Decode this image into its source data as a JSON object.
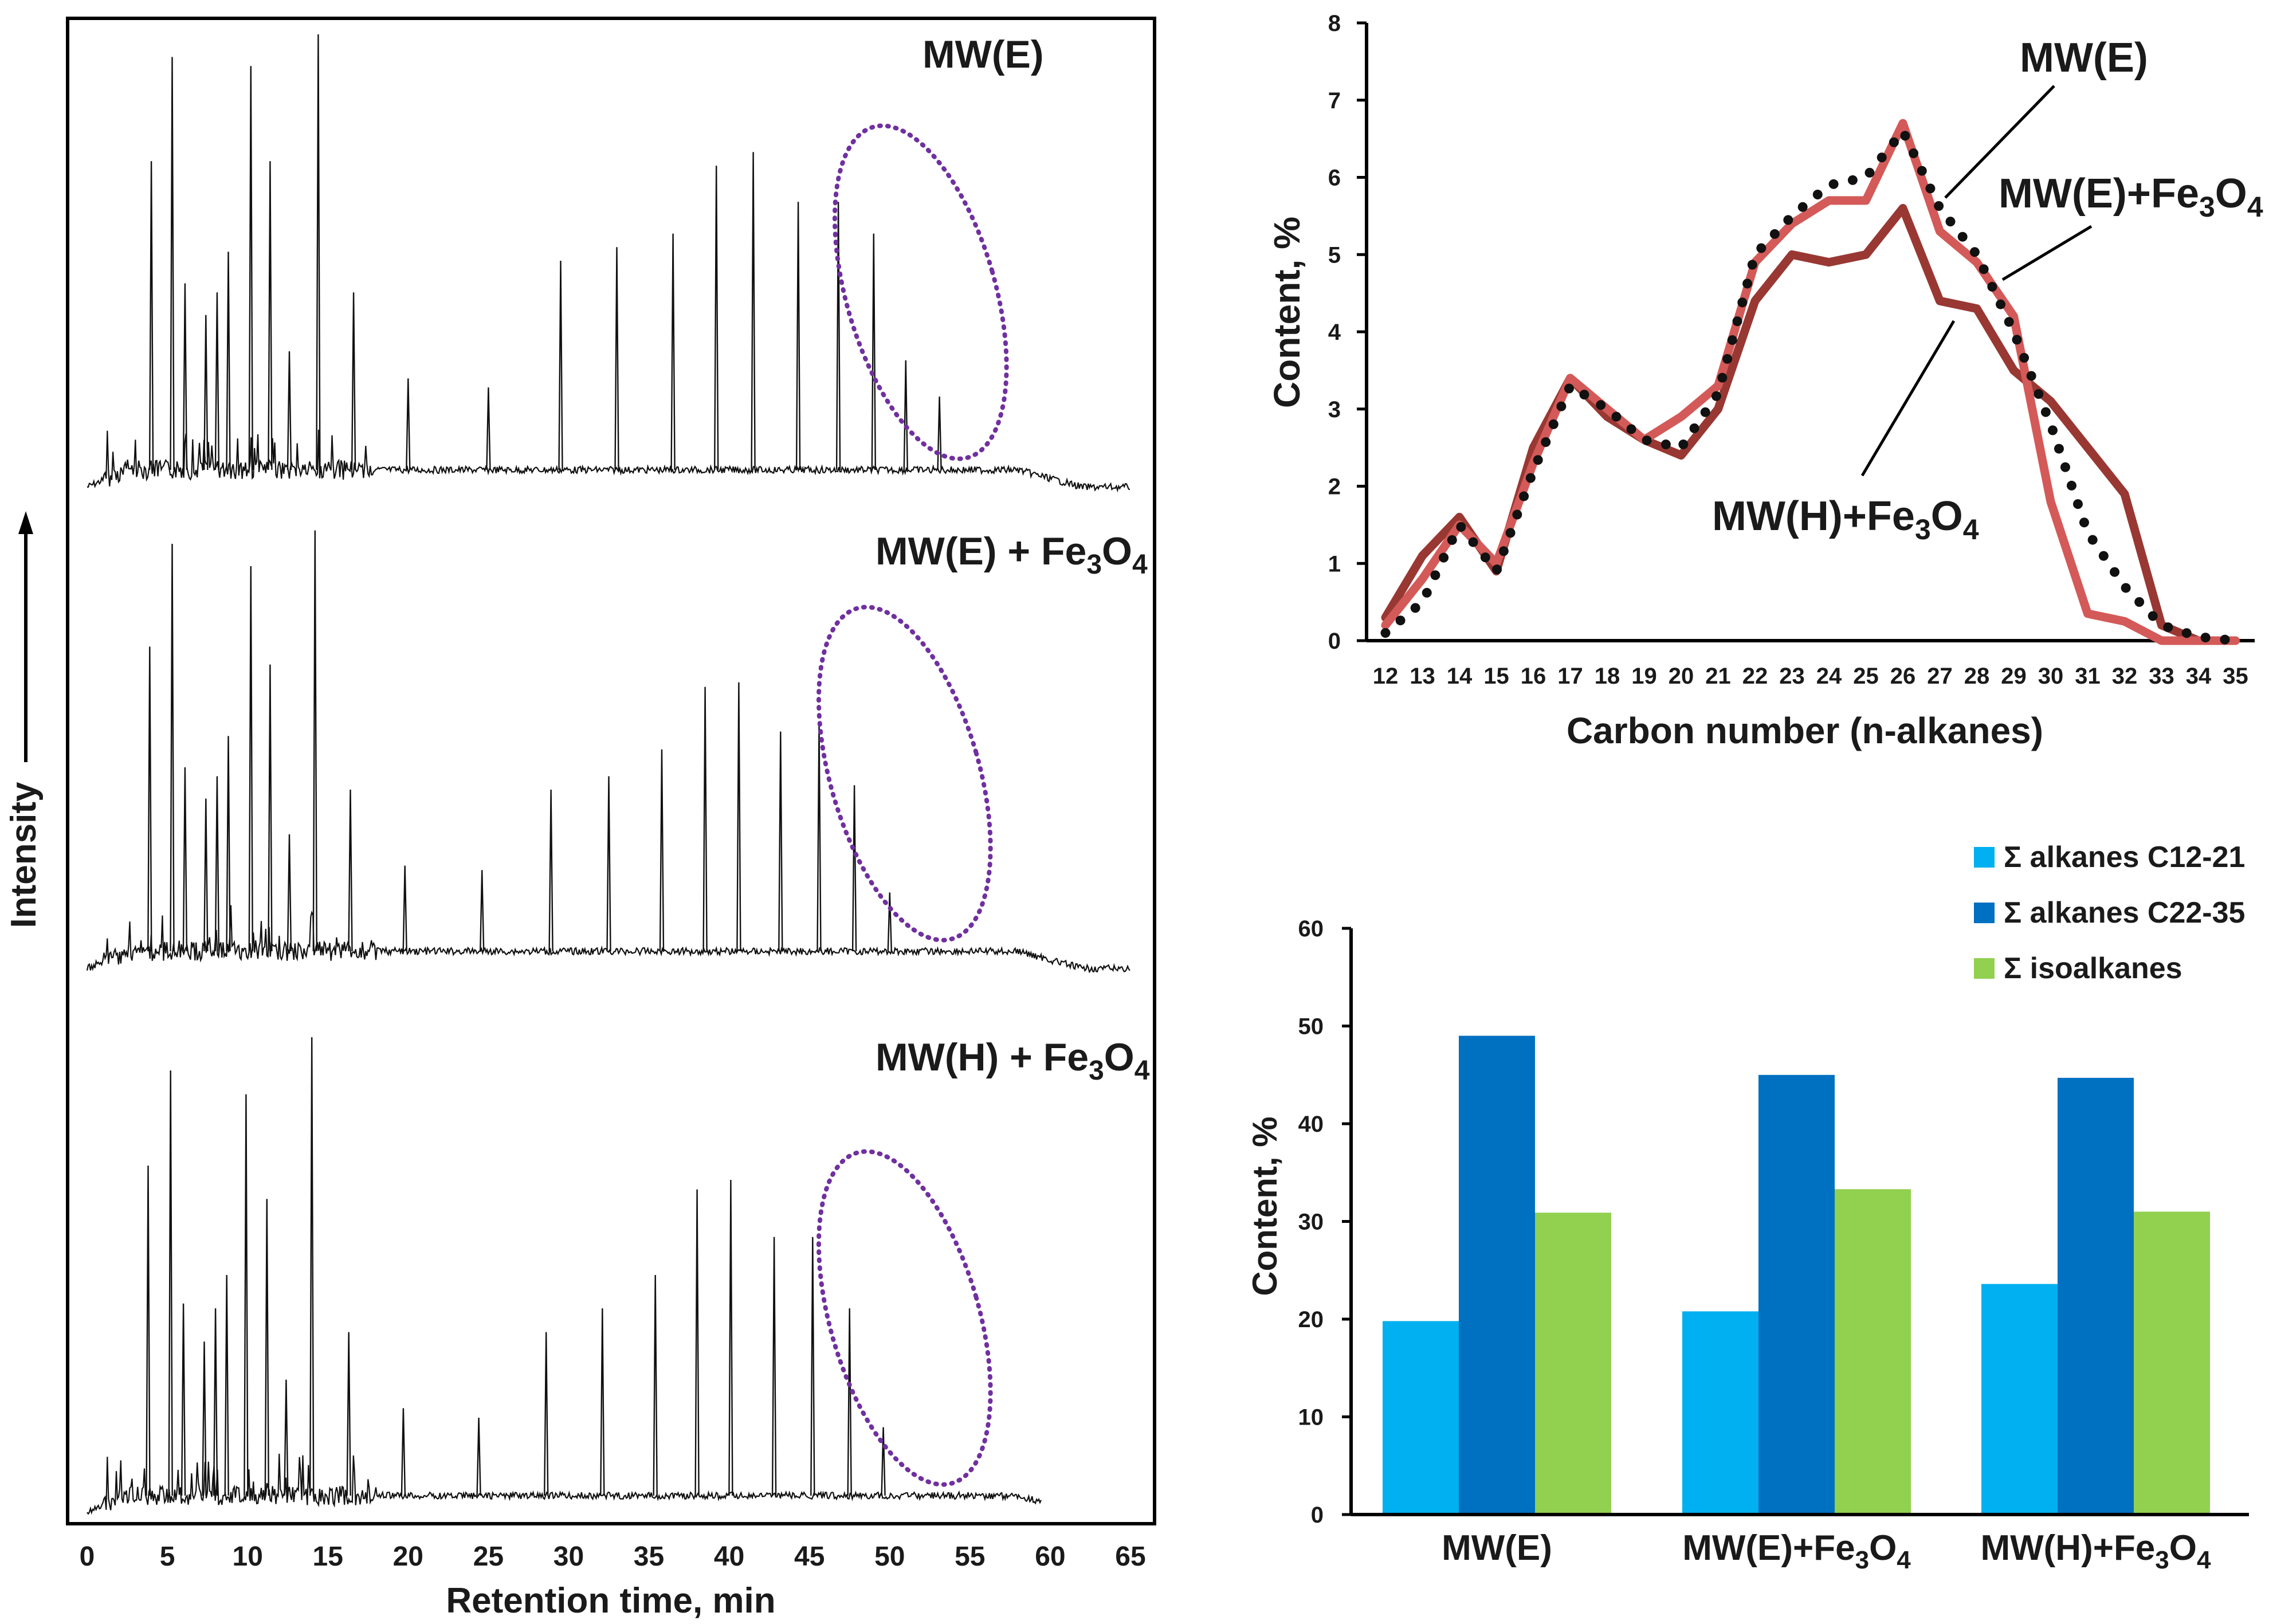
{
  "chart_data": [
    {
      "type": "line",
      "id": "chromatograms",
      "xlabel": "Retention time, min",
      "ylabel": "Intensity",
      "xlim": [
        0,
        65
      ],
      "xticks": [
        0,
        5,
        10,
        15,
        20,
        25,
        30,
        35,
        40,
        45,
        50,
        55,
        60,
        65
      ],
      "series": [
        {
          "name": "MW(E)",
          "label_main": "MW(E)",
          "label_sub": "",
          "label_tail": "",
          "trace_end": 65,
          "peaks": [
            [
              4.0,
              0.72
            ],
            [
              5.3,
              0.95
            ],
            [
              6.1,
              0.45
            ],
            [
              7.4,
              0.38
            ],
            [
              8.1,
              0.43
            ],
            [
              8.8,
              0.52
            ],
            [
              10.2,
              0.93
            ],
            [
              11.4,
              0.72
            ],
            [
              12.6,
              0.3
            ],
            [
              14.4,
              1.0
            ],
            [
              16.6,
              0.43
            ],
            [
              20.0,
              0.24
            ],
            [
              25.0,
              0.22
            ],
            [
              29.5,
              0.5
            ],
            [
              33.0,
              0.53
            ],
            [
              36.5,
              0.56
            ],
            [
              39.2,
              0.71
            ],
            [
              41.5,
              0.74
            ],
            [
              44.3,
              0.63
            ],
            [
              46.8,
              0.63
            ],
            [
              49.0,
              0.56
            ],
            [
              51.0,
              0.28
            ],
            [
              53.1,
              0.2
            ]
          ],
          "ellipse_center_min": 50.5
        },
        {
          "name": "MW(E) + Fe3O4",
          "label_main": "MW(E) + Fe",
          "label_sub": "3",
          "label_tail": "O",
          "label_sub2": "4",
          "trace_end": 65,
          "peaks": [
            [
              3.9,
              0.72
            ],
            [
              5.3,
              0.95
            ],
            [
              6.1,
              0.45
            ],
            [
              7.4,
              0.38
            ],
            [
              8.1,
              0.43
            ],
            [
              8.8,
              0.52
            ],
            [
              10.2,
              0.9
            ],
            [
              11.4,
              0.68
            ],
            [
              12.6,
              0.3
            ],
            [
              14.2,
              0.98
            ],
            [
              16.4,
              0.4
            ],
            [
              19.8,
              0.23
            ],
            [
              24.6,
              0.22
            ],
            [
              28.9,
              0.4
            ],
            [
              32.5,
              0.43
            ],
            [
              35.8,
              0.49
            ],
            [
              38.5,
              0.63
            ],
            [
              40.6,
              0.64
            ],
            [
              43.2,
              0.53
            ],
            [
              45.6,
              0.55
            ],
            [
              47.8,
              0.41
            ],
            [
              50.0,
              0.17
            ]
          ],
          "ellipse_center_min": 49.5
        },
        {
          "name": "MW(H) + Fe3O4",
          "label_main": "MW(H) + Fe",
          "label_sub": "3",
          "label_tail": "O",
          "label_sub2": "4",
          "trace_end": 59.5,
          "peaks": [
            [
              3.8,
              0.73
            ],
            [
              5.2,
              0.93
            ],
            [
              6.0,
              0.44
            ],
            [
              7.3,
              0.36
            ],
            [
              8.0,
              0.43
            ],
            [
              8.7,
              0.5
            ],
            [
              9.9,
              0.88
            ],
            [
              11.2,
              0.66
            ],
            [
              12.4,
              0.28
            ],
            [
              14.0,
              1.0
            ],
            [
              16.3,
              0.38
            ],
            [
              19.7,
              0.22
            ],
            [
              24.4,
              0.2
            ],
            [
              28.6,
              0.38
            ],
            [
              32.1,
              0.43
            ],
            [
              35.4,
              0.5
            ],
            [
              38.0,
              0.68
            ],
            [
              40.1,
              0.7
            ],
            [
              42.8,
              0.58
            ],
            [
              45.2,
              0.58
            ],
            [
              47.5,
              0.43
            ],
            [
              49.6,
              0.18
            ]
          ],
          "ellipse_center_min": 49.5
        }
      ]
    },
    {
      "type": "line",
      "id": "n-alkanes",
      "xlabel": "Carbon number (n-alkanes)",
      "ylabel": "Content, %",
      "ylim": [
        0,
        8
      ],
      "yticks": [
        0,
        1,
        2,
        3,
        4,
        5,
        6,
        7,
        8
      ],
      "categories": [
        12,
        13,
        14,
        15,
        16,
        17,
        18,
        19,
        20,
        21,
        22,
        23,
        24,
        25,
        26,
        27,
        28,
        29,
        30,
        31,
        32,
        33,
        34,
        35
      ],
      "series": [
        {
          "name": "MW(E)",
          "style": "dotted",
          "color": "#111111",
          "values": [
            0.1,
            0.5,
            1.5,
            0.9,
            2.2,
            3.3,
            3.0,
            2.6,
            2.5,
            3.2,
            5.0,
            5.5,
            5.9,
            6.0,
            6.6,
            5.6,
            5.0,
            4.0,
            2.8,
            1.4,
            0.7,
            0.2,
            0.05,
            0.0
          ]
        },
        {
          "name": "MW(E)+Fe3O4",
          "style": "solid",
          "color": "#d35a58",
          "values": [
            0.2,
            0.8,
            1.5,
            1.0,
            2.3,
            3.4,
            3.0,
            2.6,
            2.9,
            3.3,
            4.9,
            5.4,
            5.7,
            5.7,
            6.7,
            5.3,
            4.9,
            4.2,
            1.8,
            0.35,
            0.25,
            0.0,
            0.0,
            0.0
          ]
        },
        {
          "name": "MW(H)+Fe3O4",
          "style": "solid",
          "color": "#993833",
          "values": [
            0.3,
            1.1,
            1.6,
            0.9,
            2.5,
            3.4,
            2.9,
            2.6,
            2.4,
            3.0,
            4.4,
            5.0,
            4.9,
            5.0,
            5.6,
            4.4,
            4.3,
            3.5,
            3.1,
            2.5,
            1.9,
            0.2,
            0.0,
            0.0
          ]
        }
      ],
      "labels": {
        "mwe": "MW(E)",
        "mwefe_main": "MW(E)+Fe",
        "mwefe_sub": "3",
        "mwefe_tail": "O",
        "mwefe_sub2": "4",
        "mwhfe_main": "MW(H)+Fe",
        "mwhfe_sub": "3",
        "mwhfe_tail": "O",
        "mwhfe_sub2": "4"
      }
    },
    {
      "type": "bar",
      "id": "group-content",
      "ylabel": "Content, %",
      "ylim": [
        0,
        60
      ],
      "yticks": [
        0,
        10,
        20,
        30,
        40,
        50,
        60
      ],
      "categories": [
        {
          "main": "MW(E)",
          "sub": "",
          "tail": "",
          "sub2": ""
        },
        {
          "main": "MW(E)+Fe",
          "sub": "3",
          "tail": "O",
          "sub2": "4"
        },
        {
          "main": "MW(H)+Fe",
          "sub": "3",
          "tail": "O",
          "sub2": "4"
        }
      ],
      "series": [
        {
          "name": "Σ alkanes C12-21",
          "color": "#00b0f0",
          "values": [
            19.8,
            20.8,
            23.6
          ]
        },
        {
          "name": "Σ alkanes C22-35",
          "color": "#0070c0",
          "values": [
            49.0,
            45.0,
            44.7
          ]
        },
        {
          "name": "Σ isoalkanes",
          "color": "#92d050",
          "values": [
            30.9,
            33.3,
            31.0
          ]
        }
      ]
    }
  ]
}
